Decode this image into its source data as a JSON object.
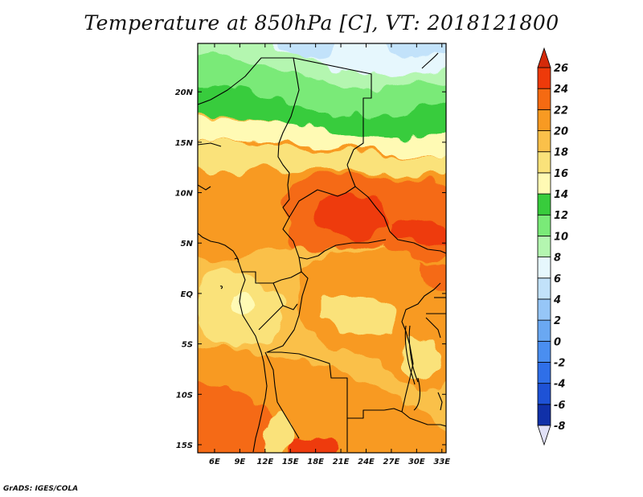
{
  "title": "Temperature at 850hPa [C], VT: 2018121800",
  "footer": "GrADS: IGES/COLA",
  "map": {
    "lon_range": [
      4,
      33.5
    ],
    "lat_range": [
      -15.8,
      24.8
    ],
    "lon_ticks": [
      {
        "value": 6,
        "label": "6E"
      },
      {
        "value": 9,
        "label": "9E"
      },
      {
        "value": 12,
        "label": "12E"
      },
      {
        "value": 15,
        "label": "15E"
      },
      {
        "value": 18,
        "label": "18E"
      },
      {
        "value": 21,
        "label": "21E"
      },
      {
        "value": 24,
        "label": "24E"
      },
      {
        "value": 27,
        "label": "27E"
      },
      {
        "value": 30,
        "label": "30E"
      },
      {
        "value": 33,
        "label": "33E"
      }
    ],
    "lat_ticks": [
      {
        "value": 20,
        "label": "20N"
      },
      {
        "value": 15,
        "label": "15N"
      },
      {
        "value": 10,
        "label": "10N"
      },
      {
        "value": 5,
        "label": "5N"
      },
      {
        "value": 0,
        "label": "EQ"
      },
      {
        "value": -5,
        "label": "5S"
      },
      {
        "value": -10,
        "label": "10S"
      },
      {
        "value": -15,
        "label": "15S"
      }
    ]
  },
  "colorbar": {
    "levels": [
      -8,
      -6,
      -4,
      -2,
      0,
      2,
      4,
      6,
      8,
      10,
      12,
      14,
      16,
      18,
      20,
      22,
      24,
      26
    ],
    "labels": [
      "-8",
      "-6",
      "-4",
      "-2",
      "0",
      "2",
      "4",
      "6",
      "8",
      "10",
      "12",
      "14",
      "16",
      "18",
      "20",
      "22",
      "24",
      "26"
    ],
    "colors": [
      "#0a1a6e",
      "#1030a8",
      "#1e52d6",
      "#2f6fe8",
      "#4a8ef0",
      "#6aa8f2",
      "#96c6f7",
      "#c2e2fa",
      "#e6f7fd",
      "#b4f6b0",
      "#7aea78",
      "#38cc3c",
      "#fffab4",
      "#fae27a",
      "#fac04a",
      "#f89a22",
      "#f56a12",
      "#ee3a0a"
    ],
    "under_color": "#e1e1f7",
    "over_color": "#d42a0a"
  }
}
